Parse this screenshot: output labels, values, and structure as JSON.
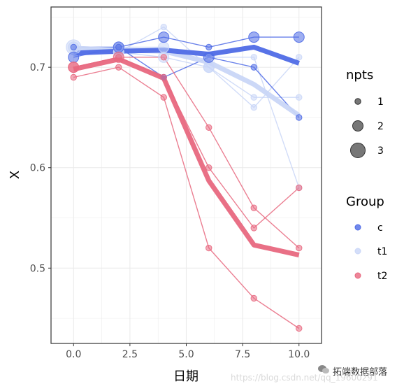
{
  "chart_data": {
    "type": "line",
    "xlabel": "日期",
    "ylabel": "X",
    "xlim": [
      -1,
      11
    ],
    "ylim": [
      0.425,
      0.76
    ],
    "x_ticks": [
      0.0,
      2.5,
      5.0,
      7.5,
      10.0
    ],
    "x_tick_labels": [
      "0.0",
      "2.5",
      "5.0",
      "7.5",
      "10.0"
    ],
    "y_ticks": [
      0.5,
      0.6,
      0.7
    ],
    "y_tick_labels": [
      "0.5",
      "0.6",
      "0.7"
    ],
    "grid": true,
    "legend_placement": "right",
    "size_legend": {
      "title": "npts",
      "items": [
        {
          "label": "1",
          "value": 1
        },
        {
          "label": "2",
          "value": 2
        },
        {
          "label": "3",
          "value": 3
        }
      ]
    },
    "color_legend": {
      "title": "Group",
      "items": [
        {
          "label": "c",
          "color": "#4f6be6"
        },
        {
          "label": "t1",
          "color": "#c9d6f7"
        },
        {
          "label": "t2",
          "color": "#e8687f"
        }
      ]
    },
    "groups": [
      {
        "name": "t1",
        "color": "#c9d6f7",
        "mean": [
          {
            "x": 0,
            "y": 0.719
          },
          {
            "x": 2,
            "y": 0.717
          },
          {
            "x": 4,
            "y": 0.716
          },
          {
            "x": 6,
            "y": 0.705
          },
          {
            "x": 8,
            "y": 0.683
          },
          {
            "x": 10,
            "y": 0.652
          }
        ],
        "subjects": [
          [
            {
              "x": 0,
              "y": 0.72,
              "n": 3
            },
            {
              "x": 2,
              "y": 0.715,
              "n": 2
            },
            {
              "x": 4,
              "y": 0.74,
              "n": 1
            },
            {
              "x": 6,
              "y": 0.7,
              "n": 2
            },
            {
              "x": 8,
              "y": 0.67,
              "n": 1
            },
            {
              "x": 10,
              "y": 0.67,
              "n": 1
            }
          ],
          [
            {
              "x": 0,
              "y": 0.72,
              "n": 2
            },
            {
              "x": 2,
              "y": 0.72,
              "n": 2
            },
            {
              "x": 4,
              "y": 0.72,
              "n": 2
            },
            {
              "x": 6,
              "y": 0.71,
              "n": 1
            },
            {
              "x": 8,
              "y": 0.71,
              "n": 1
            },
            {
              "x": 10,
              "y": 0.58,
              "n": 1
            }
          ],
          [
            {
              "x": 0,
              "y": 0.715,
              "n": 1
            },
            {
              "x": 2,
              "y": 0.715,
              "n": 2
            },
            {
              "x": 4,
              "y": 0.71,
              "n": 2
            },
            {
              "x": 6,
              "y": 0.7,
              "n": 2
            },
            {
              "x": 8,
              "y": 0.66,
              "n": 1
            },
            {
              "x": 10,
              "y": 0.71,
              "n": 1
            }
          ]
        ]
      },
      {
        "name": "c",
        "color": "#4f6be6",
        "mean": [
          {
            "x": 0,
            "y": 0.714
          },
          {
            "x": 2,
            "y": 0.716
          },
          {
            "x": 4,
            "y": 0.717
          },
          {
            "x": 6,
            "y": 0.713
          },
          {
            "x": 8,
            "y": 0.72
          },
          {
            "x": 10,
            "y": 0.704
          }
        ],
        "subjects": [
          [
            {
              "x": 0,
              "y": 0.71,
              "n": 2
            },
            {
              "x": 2,
              "y": 0.72,
              "n": 2
            },
            {
              "x": 4,
              "y": 0.73,
              "n": 2
            },
            {
              "x": 6,
              "y": 0.72,
              "n": 1
            },
            {
              "x": 8,
              "y": 0.73,
              "n": 2
            },
            {
              "x": 10,
              "y": 0.73,
              "n": 2
            }
          ],
          [
            {
              "x": 0,
              "y": 0.72,
              "n": 1
            },
            {
              "x": 2,
              "y": 0.72,
              "n": 1
            },
            {
              "x": 4,
              "y": 0.69,
              "n": 1
            },
            {
              "x": 6,
              "y": 0.71,
              "n": 2
            },
            {
              "x": 8,
              "y": 0.7,
              "n": 1
            },
            {
              "x": 10,
              "y": 0.65,
              "n": 1
            }
          ]
        ]
      },
      {
        "name": "t2",
        "color": "#e8687f",
        "mean": [
          {
            "x": 0,
            "y": 0.698
          },
          {
            "x": 2,
            "y": 0.708
          },
          {
            "x": 4,
            "y": 0.689
          },
          {
            "x": 6,
            "y": 0.587
          },
          {
            "x": 8,
            "y": 0.523
          },
          {
            "x": 10,
            "y": 0.513
          }
        ],
        "subjects": [
          [
            {
              "x": 0,
              "y": 0.7,
              "n": 2
            },
            {
              "x": 2,
              "y": 0.71,
              "n": 2
            },
            {
              "x": 4,
              "y": 0.69,
              "n": 1
            },
            {
              "x": 6,
              "y": 0.6,
              "n": 1
            },
            {
              "x": 8,
              "y": 0.54,
              "n": 1
            },
            {
              "x": 10,
              "y": 0.58,
              "n": 1
            }
          ],
          [
            {
              "x": 0,
              "y": 0.69,
              "n": 1
            },
            {
              "x": 2,
              "y": 0.7,
              "n": 1
            },
            {
              "x": 4,
              "y": 0.67,
              "n": 1
            },
            {
              "x": 6,
              "y": 0.52,
              "n": 1
            },
            {
              "x": 8,
              "y": 0.47,
              "n": 1
            },
            {
              "x": 10,
              "y": 0.44,
              "n": 1
            }
          ],
          [
            {
              "x": 0,
              "y": 0.7,
              "n": 2
            },
            {
              "x": 2,
              "y": 0.71,
              "n": 1
            },
            {
              "x": 4,
              "y": 0.71,
              "n": 1
            },
            {
              "x": 6,
              "y": 0.64,
              "n": 1
            },
            {
              "x": 8,
              "y": 0.56,
              "n": 1
            },
            {
              "x": 10,
              "y": 0.52,
              "n": 1
            }
          ]
        ]
      }
    ]
  },
  "watermark": {
    "brand_text": "拓端数据部落",
    "url_text": "https://blog.csdn.net/qq_19600291"
  }
}
